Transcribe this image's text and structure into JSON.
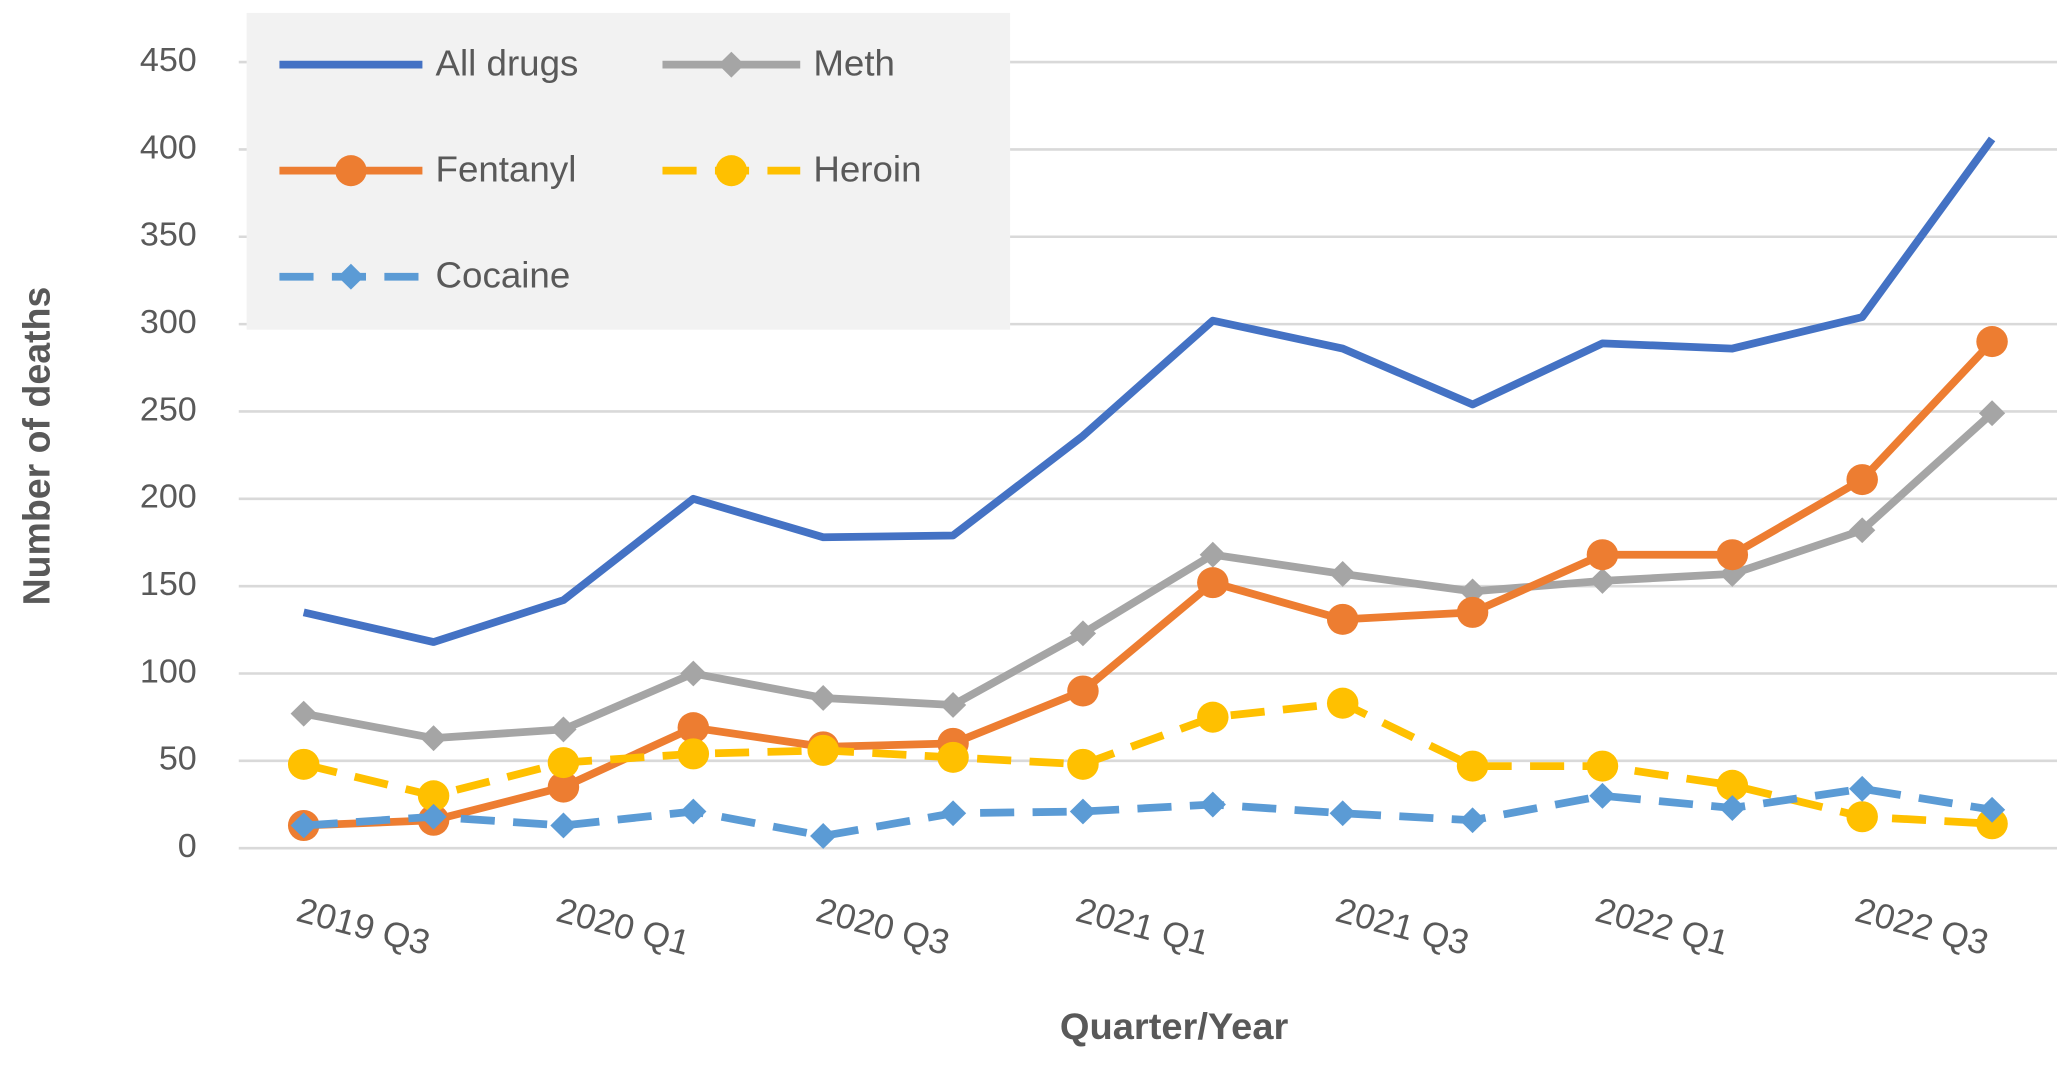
{
  "chart_data": {
    "type": "line",
    "x_label": "Quarter/Year",
    "y_label": "Number of deaths",
    "categories": [
      "2019 Q3",
      null,
      "2020 Q1",
      null,
      "2020 Q3",
      null,
      "2021 Q1",
      null,
      "2021 Q3",
      null,
      "2022 Q1",
      null,
      "2022 Q3",
      null
    ],
    "series": [
      {
        "name": "All drugs",
        "color": "#4472c4",
        "marker": "none",
        "dash": false,
        "values": [
          135,
          118,
          142,
          200,
          178,
          179,
          236,
          302,
          286,
          254,
          289,
          286,
          304,
          406
        ]
      },
      {
        "name": "Meth",
        "color": "#a5a5a5",
        "marker": "diamond",
        "dash": false,
        "values": [
          77,
          63,
          68,
          100,
          86,
          82,
          123,
          168,
          157,
          147,
          153,
          157,
          182,
          249
        ]
      },
      {
        "name": "Fentanyl",
        "color": "#ed7d31",
        "marker": "circle",
        "dash": false,
        "values": [
          13,
          16,
          35,
          69,
          58,
          60,
          90,
          152,
          131,
          135,
          168,
          168,
          211,
          290
        ]
      },
      {
        "name": "Heroin",
        "color": "#ffc000",
        "marker": "circle",
        "dash": true,
        "values": [
          48,
          30,
          49,
          54,
          56,
          52,
          48,
          75,
          83,
          47,
          47,
          36,
          18,
          14
        ]
      },
      {
        "name": "Cocaine",
        "color": "#5b9bd5",
        "marker": "diamond",
        "dash": true,
        "values": [
          13,
          18,
          13,
          21,
          7,
          20,
          21,
          25,
          20,
          16,
          30,
          23,
          34,
          22
        ]
      }
    ],
    "ylim": [
      0,
      450
    ],
    "yticks": [
      0,
      50,
      100,
      150,
      200,
      250,
      300,
      350,
      400,
      450
    ],
    "grid": true,
    "legend": "upper left"
  }
}
